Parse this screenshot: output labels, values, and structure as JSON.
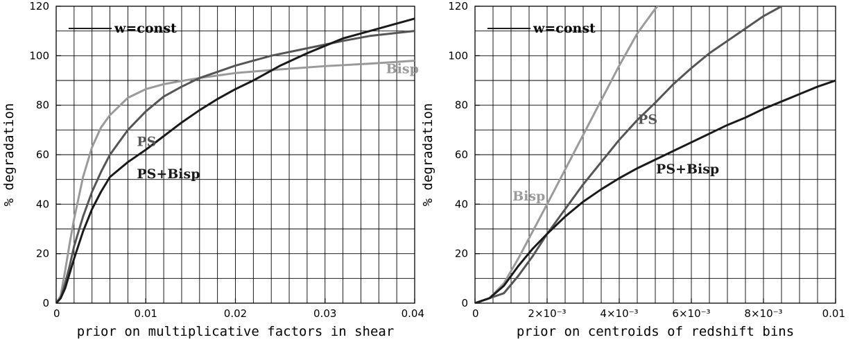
{
  "chart_data": [
    {
      "type": "line",
      "xlabel": "prior on multiplicative factors in shear",
      "ylabel": "% degradation",
      "xlim": [
        0,
        0.04
      ],
      "ylim": [
        0,
        120
      ],
      "x_ticks": [
        {
          "v": 0,
          "t": "0"
        },
        {
          "v": 0.01,
          "t": "0.01"
        },
        {
          "v": 0.02,
          "t": "0.02"
        },
        {
          "v": 0.03,
          "t": "0.03"
        },
        {
          "v": 0.04,
          "t": "0.04"
        }
      ],
      "y_ticks": [
        {
          "v": 0,
          "t": "0"
        },
        {
          "v": 20,
          "t": "20"
        },
        {
          "v": 40,
          "t": "40"
        },
        {
          "v": 60,
          "t": "60"
        },
        {
          "v": 80,
          "t": "80"
        },
        {
          "v": 100,
          "t": "100"
        },
        {
          "v": 120,
          "t": "120"
        }
      ],
      "x_grid_step": 0.002,
      "y_grid_step": 10,
      "legend": {
        "label": "w=const",
        "color": "#1a1a1a",
        "position": "top-left"
      },
      "series": [
        {
          "name": "Bisp",
          "color": "#9a9a9a",
          "x": [
            0,
            0.0005,
            0.001,
            0.0015,
            0.002,
            0.003,
            0.004,
            0.005,
            0.006,
            0.008,
            0.01,
            0.012,
            0.014,
            0.016,
            0.018,
            0.02,
            0.025,
            0.03,
            0.035,
            0.04
          ],
          "y": [
            0,
            3,
            13,
            24,
            34,
            51,
            63,
            71,
            76,
            83,
            86.5,
            88.5,
            89.8,
            91,
            92,
            93,
            94.5,
            95.8,
            96.8,
            98
          ]
        },
        {
          "name": "PS",
          "color": "#555555",
          "x": [
            0,
            0.0005,
            0.001,
            0.0015,
            0.002,
            0.003,
            0.004,
            0.005,
            0.006,
            0.007,
            0.008,
            0.01,
            0.012,
            0.014,
            0.016,
            0.018,
            0.02,
            0.022,
            0.024,
            0.026,
            0.028,
            0.03,
            0.032,
            0.035,
            0.04
          ],
          "y": [
            0,
            2,
            8,
            15,
            23,
            35,
            45,
            53,
            60,
            65,
            70,
            77.5,
            83.5,
            87.5,
            91,
            93.5,
            96,
            98,
            100,
            101.5,
            103,
            104.5,
            106,
            108,
            110
          ]
        },
        {
          "name": "PS+Bisp",
          "color": "#1a1a1a",
          "x": [
            0,
            0.0005,
            0.001,
            0.0015,
            0.002,
            0.003,
            0.004,
            0.005,
            0.006,
            0.008,
            0.01,
            0.012,
            0.014,
            0.016,
            0.018,
            0.02,
            0.022,
            0.025,
            0.028,
            0.03,
            0.032,
            0.035,
            0.038,
            0.04
          ],
          "y": [
            0,
            2,
            6,
            12,
            18,
            29,
            38,
            45,
            51,
            57,
            62,
            67.5,
            73,
            78,
            82.5,
            86.5,
            90,
            96,
            101,
            104,
            107,
            110,
            113,
            115
          ]
        }
      ],
      "annotations": [
        {
          "text": "Bisp",
          "x": 0.0368,
          "y": 93,
          "color": "#9a9a9a"
        },
        {
          "text": "PS",
          "x": 0.009,
          "y": 63.5,
          "color": "#555555"
        },
        {
          "text": "PS+Bisp",
          "x": 0.009,
          "y": 50.5,
          "color": "#1a1a1a"
        }
      ]
    },
    {
      "type": "line",
      "xlabel": "prior on centroids of redshift bins",
      "ylabel": "% degradation",
      "xlim": [
        0,
        0.01
      ],
      "ylim": [
        0,
        120
      ],
      "x_ticks": [
        {
          "v": 0,
          "t": "0"
        },
        {
          "v": 0.002,
          "t": "2×10⁻³"
        },
        {
          "v": 0.004,
          "t": "4×10⁻³"
        },
        {
          "v": 0.006,
          "t": "6×10⁻³"
        },
        {
          "v": 0.008,
          "t": "8×10⁻³"
        },
        {
          "v": 0.01,
          "t": "0.01"
        }
      ],
      "y_ticks": [
        {
          "v": 0,
          "t": "0"
        },
        {
          "v": 20,
          "t": "20"
        },
        {
          "v": 40,
          "t": "40"
        },
        {
          "v": 60,
          "t": "60"
        },
        {
          "v": 80,
          "t": "80"
        },
        {
          "v": 100,
          "t": "100"
        },
        {
          "v": 120,
          "t": "120"
        }
      ],
      "x_grid_step": 0.0005,
      "y_grid_step": 10,
      "legend": {
        "label": "w=const",
        "color": "#1a1a1a",
        "position": "top-left"
      },
      "series": [
        {
          "name": "Bisp",
          "color": "#9a9a9a",
          "x": [
            0,
            0.0004,
            0.0008,
            0.0012,
            0.0016,
            0.002,
            0.0025,
            0.003,
            0.0035,
            0.004,
            0.0045,
            0.005,
            0.0052
          ],
          "y": [
            0,
            2,
            8,
            18,
            29,
            40,
            54,
            68,
            82,
            96,
            109,
            119,
            122
          ]
        },
        {
          "name": "PS",
          "color": "#555555",
          "x": [
            0,
            0.0004,
            0.0008,
            0.0012,
            0.0016,
            0.002,
            0.0025,
            0.003,
            0.0035,
            0.004,
            0.0045,
            0.005,
            0.0055,
            0.006,
            0.0065,
            0.007,
            0.0075,
            0.008,
            0.0085
          ],
          "y": [
            0,
            2,
            4,
            11,
            19,
            28,
            38,
            48,
            57,
            66,
            74,
            81,
            88.5,
            95,
            101,
            106,
            111,
            116,
            120
          ]
        },
        {
          "name": "PS+Bisp",
          "color": "#1a1a1a",
          "x": [
            0,
            0.0004,
            0.0008,
            0.0012,
            0.0016,
            0.002,
            0.0025,
            0.003,
            0.0035,
            0.004,
            0.0045,
            0.005,
            0.0055,
            0.006,
            0.0065,
            0.007,
            0.0075,
            0.008,
            0.0085,
            0.009,
            0.0095,
            0.01
          ],
          "y": [
            0,
            2,
            7,
            15,
            22,
            28,
            35,
            41,
            46,
            50.5,
            54.5,
            58,
            61.5,
            65,
            68.5,
            72,
            75,
            78.5,
            81.5,
            84.5,
            87.5,
            90
          ]
        }
      ],
      "annotations": [
        {
          "text": "Bisp",
          "x": 0.00104,
          "y": 41.5,
          "color": "#9a9a9a"
        },
        {
          "text": "PS",
          "x": 0.00452,
          "y": 72.5,
          "color": "#555555"
        },
        {
          "text": "PS+Bisp",
          "x": 0.00502,
          "y": 52.5,
          "color": "#1a1a1a"
        }
      ]
    }
  ]
}
